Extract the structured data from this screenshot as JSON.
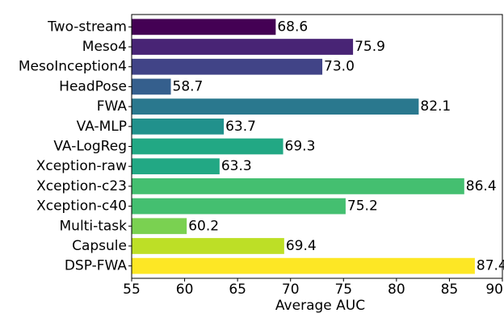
{
  "chart_data": {
    "type": "bar",
    "orientation": "horizontal",
    "categories": [
      "Two-stream",
      "Meso4",
      "MesoInception4",
      "HeadPose",
      "FWA",
      "VA-MLP",
      "VA-LogReg",
      "Xception-raw",
      "Xception-c23",
      "Xception-c40",
      "Multi-task",
      "Capsule",
      "DSP-FWA"
    ],
    "values": [
      68.6,
      75.9,
      73.0,
      58.7,
      82.1,
      63.7,
      69.3,
      63.3,
      86.4,
      75.2,
      60.2,
      69.4,
      87.4
    ],
    "value_labels": [
      "68.6",
      "75.9",
      "73.0",
      "58.7",
      "82.1",
      "63.7",
      "69.3",
      "63.3",
      "86.4",
      "75.2",
      "60.2",
      "69.4",
      "87.4"
    ],
    "colors": [
      "#440154",
      "#482475",
      "#414487",
      "#355f8d",
      "#2a788e",
      "#21918c",
      "#22a884",
      "#22a884",
      "#44bf70",
      "#44bf70",
      "#7ad151",
      "#bddf26",
      "#fde725"
    ],
    "xlim": [
      55,
      90
    ],
    "xticks": [
      55,
      60,
      65,
      70,
      75,
      80,
      85,
      90
    ],
    "xtick_labels": [
      "55",
      "60",
      "65",
      "70",
      "75",
      "80",
      "85",
      "90"
    ],
    "xlabel": "Average AUC",
    "ylabel": "",
    "title": "",
    "grid": false
  }
}
